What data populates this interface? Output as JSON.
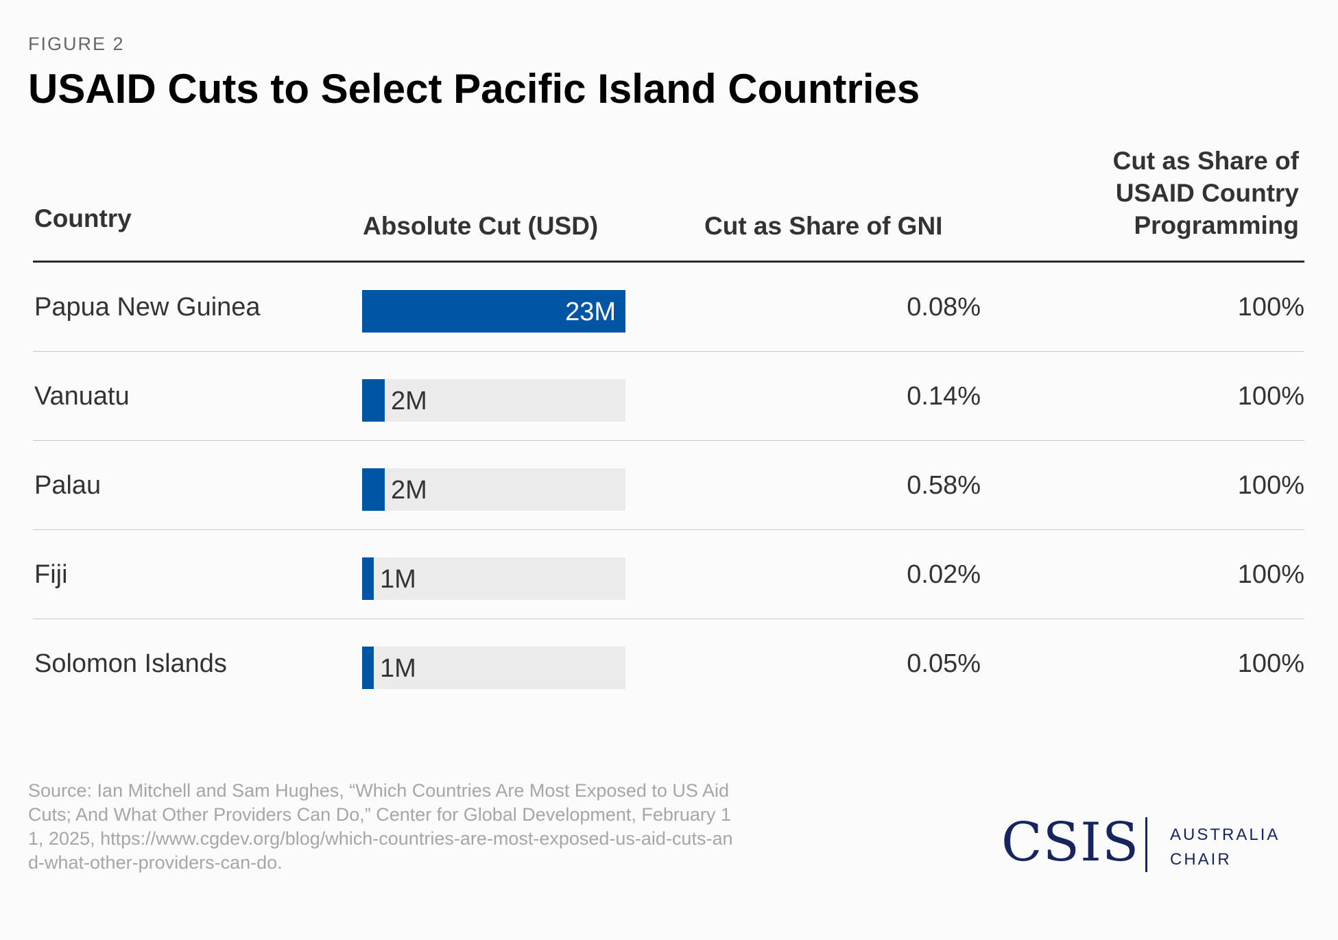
{
  "figure_label": "FIGURE 2",
  "title": "USAID Cuts to Select Pacific Island Countries",
  "headers": {
    "country": "Country",
    "absolute_cut": "Absolute Cut (USD)",
    "gni_share": "Cut as Share of GNI",
    "programming_share": [
      "Cut as Share of",
      "USAID Country",
      "Programming"
    ]
  },
  "colors": {
    "bar": "#0055a4",
    "track": "#ebebeb",
    "logo": "#17255e"
  },
  "chart_data": {
    "type": "table",
    "title": "USAID Cuts to Select Pacific Island Countries",
    "bar_max": 23,
    "rows": [
      {
        "country": "Papua New Guinea",
        "cut_musd": 23,
        "cut_label": "23M",
        "gni_share": "0.08%",
        "programming_share": "100%"
      },
      {
        "country": "Vanuatu",
        "cut_musd": 2,
        "cut_label": "2M",
        "gni_share": "0.14%",
        "programming_share": "100%"
      },
      {
        "country": "Palau",
        "cut_musd": 2,
        "cut_label": "2M",
        "gni_share": "0.58%",
        "programming_share": "100%"
      },
      {
        "country": "Fiji",
        "cut_musd": 1,
        "cut_label": "1M",
        "gni_share": "0.02%",
        "programming_share": "100%"
      },
      {
        "country": "Solomon Islands",
        "cut_musd": 1,
        "cut_label": "1M",
        "gni_share": "0.05%",
        "programming_share": "100%"
      }
    ]
  },
  "source": "Source: Ian Mitchell and Sam Hughes, “Which Countries Are Most Exposed to US Aid Cuts; And What Other Providers Can Do,” Center for Global Development, February 11, 2025, https://www.cgdev.org/blog/which-countries-are-most-exposed-us-aid-cuts-and-what-other-providers-can-do.",
  "logo": {
    "wordmark": "CSIS",
    "line1": "AUSTRALIA",
    "line2": "CHAIR"
  }
}
